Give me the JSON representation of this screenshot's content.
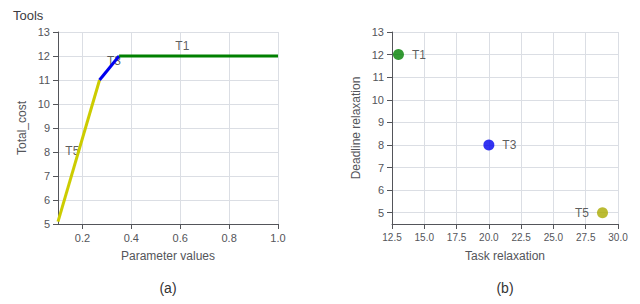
{
  "title": "Tools",
  "chart_data": [
    {
      "type": "line",
      "title": "(a)",
      "x_label": "Parameter values",
      "y_label": "Total_cost",
      "xlim": [
        0.1,
        1.0
      ],
      "ylim": [
        5.0,
        13.0
      ],
      "xticks": [
        0.2,
        0.4,
        0.6,
        0.8,
        {
          "value": 1.0,
          "label": "1.0"
        }
      ],
      "yticks": [
        5,
        6,
        7,
        8,
        9,
        10,
        11,
        12,
        13
      ],
      "grid": true,
      "series": [
        {
          "name": "T5",
          "color": "#cccc00",
          "x": [
            0.1,
            0.27
          ],
          "values": [
            5.1,
            11.0
          ]
        },
        {
          "name": "T3",
          "color": "#0000ee",
          "x": [
            0.27,
            0.35
          ],
          "values": [
            11.0,
            12.0
          ]
        },
        {
          "name": "T1",
          "color": "#008000",
          "x": [
            0.35,
            1.0
          ],
          "values": [
            12.0,
            12.0
          ]
        }
      ],
      "annotations": [
        {
          "text": "T5",
          "x": 0.13,
          "y": 7.8
        },
        {
          "text": "T3",
          "x": 0.3,
          "y": 11.55
        },
        {
          "text": "T1",
          "x": 0.58,
          "y": 12.15
        }
      ]
    },
    {
      "type": "scatter",
      "title": "(b)",
      "x_label": "Task relaxation",
      "y_label": "Deadline relaxation",
      "xlim": [
        12.5,
        30.0
      ],
      "ylim": [
        4.5,
        13.0
      ],
      "xticks": [
        12.5,
        {
          "value": 15.0,
          "label": "15.0"
        },
        17.5,
        {
          "value": 20.0,
          "label": "20.0"
        },
        22.5,
        {
          "value": 25.0,
          "label": "25.0"
        },
        27.5,
        {
          "value": 30.0,
          "label": "30.0"
        }
      ],
      "yticks": [
        5,
        6,
        7,
        8,
        9,
        10,
        11,
        12,
        13
      ],
      "grid": true,
      "series": [
        {
          "name": "T1",
          "color": "#008000",
          "x": [
            13.0
          ],
          "values": [
            12.0
          ]
        },
        {
          "name": "T3",
          "color": "#0000ee",
          "x": [
            20.0
          ],
          "values": [
            8.0
          ]
        },
        {
          "name": "T5",
          "color": "#aaaa00",
          "x": [
            28.8
          ],
          "values": [
            5.0
          ]
        }
      ]
    }
  ]
}
